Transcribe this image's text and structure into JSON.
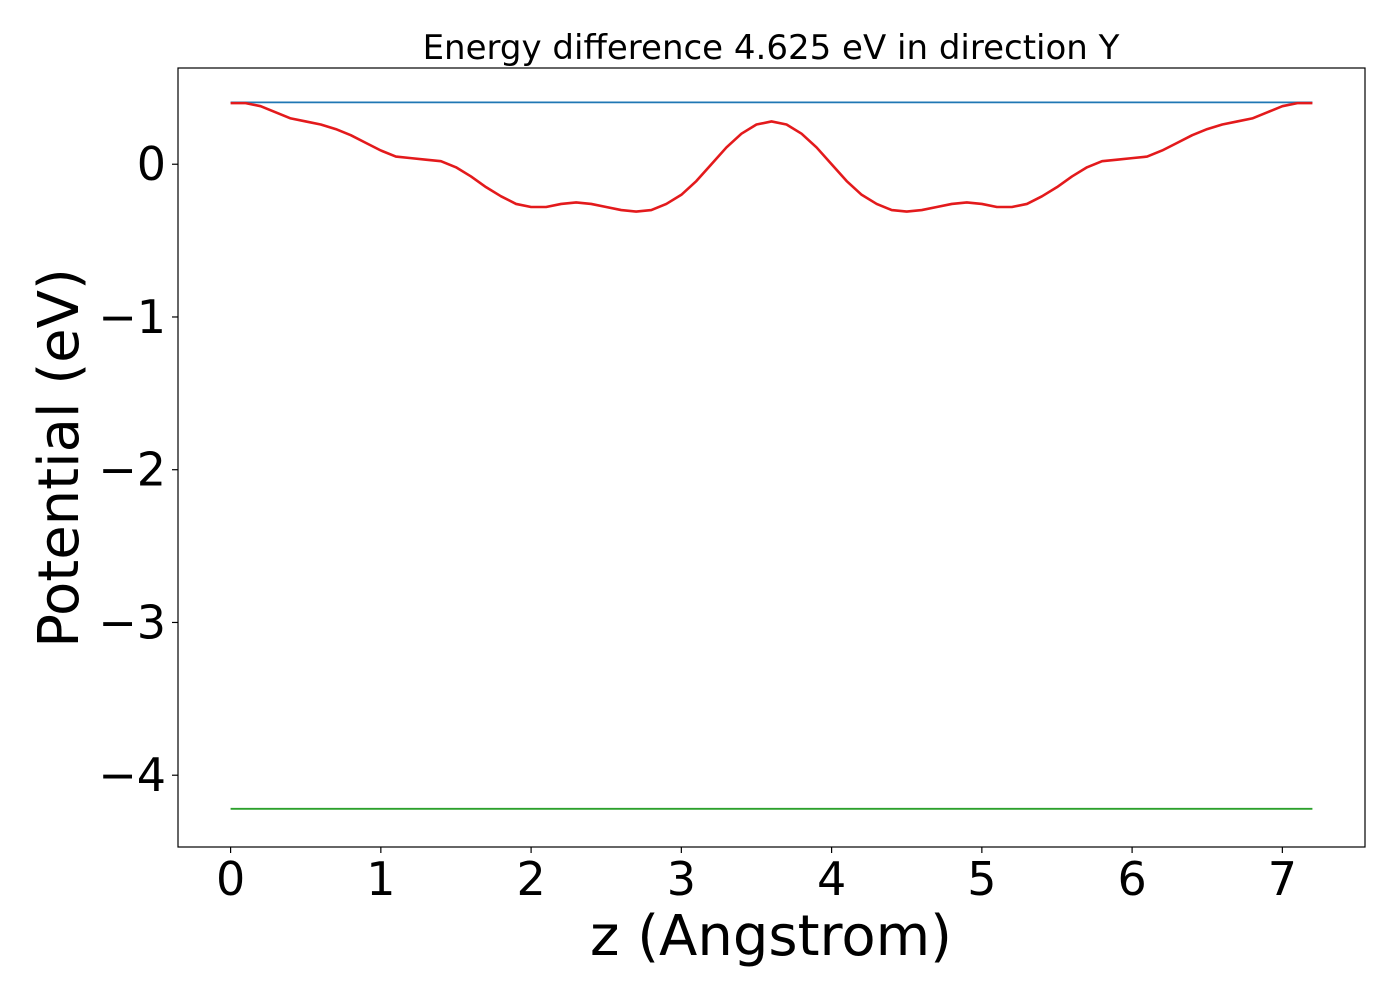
{
  "chart_data": {
    "type": "line",
    "title": "Energy difference 4.625 eV in direction Y",
    "xlabel": "z (Angstrom)",
    "ylabel": "Potential (eV)",
    "xlim": [
      -0.35,
      7.55
    ],
    "ylim": [
      -4.47,
      0.63
    ],
    "grid": false,
    "xticks": [
      0,
      1,
      2,
      3,
      4,
      5,
      6,
      7
    ],
    "xtick_labels": [
      "0",
      "1",
      "2",
      "3",
      "4",
      "5",
      "6",
      "7"
    ],
    "yticks": [
      0,
      -1,
      -2,
      -3,
      -4
    ],
    "ytick_labels": [
      "0",
      "−1",
      "−2",
      "−3",
      "−4"
    ],
    "series": [
      {
        "color": "#1f77b4",
        "x": [
          0,
          7.2
        ],
        "y": [
          0.405,
          0.405
        ]
      },
      {
        "color": "#2ca02c",
        "x": [
          0,
          7.2
        ],
        "y": [
          -4.22,
          -4.22
        ]
      },
      {
        "color": "#e31a1c",
        "x": [
          0,
          0.1,
          0.2,
          0.3,
          0.4,
          0.5,
          0.6,
          0.7,
          0.8,
          0.9,
          1.0,
          1.1,
          1.2,
          1.3,
          1.4,
          1.5,
          1.6,
          1.7,
          1.8,
          1.9,
          2.0,
          2.1,
          2.2,
          2.3,
          2.4,
          2.5,
          2.6,
          2.7,
          2.8,
          2.9,
          3.0,
          3.1,
          3.2,
          3.3,
          3.4,
          3.5,
          3.6,
          3.7,
          3.8,
          3.9,
          4.0,
          4.1,
          4.2,
          4.3,
          4.4,
          4.5,
          4.6,
          4.7,
          4.8,
          4.9,
          5.0,
          5.1,
          5.2,
          5.3,
          5.4,
          5.5,
          5.6,
          5.7,
          5.8,
          5.9,
          6.0,
          6.1,
          6.2,
          6.3,
          6.4,
          6.5,
          6.6,
          6.7,
          6.8,
          6.9,
          7.0,
          7.1,
          7.2
        ],
        "y": [
          0.4,
          0.4,
          0.38,
          0.34,
          0.3,
          0.28,
          0.26,
          0.23,
          0.19,
          0.14,
          0.09,
          0.05,
          0.04,
          0.03,
          0.02,
          -0.02,
          -0.08,
          -0.15,
          -0.21,
          -0.26,
          -0.28,
          -0.28,
          -0.26,
          -0.25,
          -0.26,
          -0.28,
          -0.3,
          -0.31,
          -0.3,
          -0.26,
          -0.2,
          -0.11,
          0.0,
          0.11,
          0.2,
          0.26,
          0.28,
          0.26,
          0.2,
          0.11,
          0.0,
          -0.11,
          -0.2,
          -0.26,
          -0.3,
          -0.31,
          -0.3,
          -0.28,
          -0.26,
          -0.25,
          -0.26,
          -0.28,
          -0.28,
          -0.26,
          -0.21,
          -0.15,
          -0.08,
          -0.02,
          0.02,
          0.03,
          0.04,
          0.05,
          0.09,
          0.14,
          0.19,
          0.23,
          0.26,
          0.28,
          0.3,
          0.34,
          0.38,
          0.4,
          0.4
        ]
      }
    ]
  }
}
